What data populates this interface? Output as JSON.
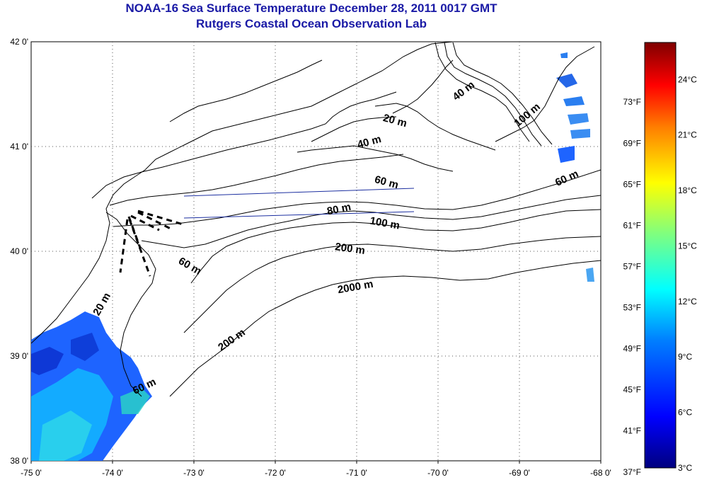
{
  "title": {
    "line1": "NOAA-16 Sea Surface Temperature December 28, 2011 0017 GMT",
    "line2": "Rutgers Coastal Ocean Observation Lab"
  },
  "map": {
    "lon_range": [
      -75,
      -68
    ],
    "lat_range": [
      38,
      42
    ],
    "x_ticks": [
      "-75 0'",
      "-74 0'",
      "-73 0'",
      "-72 0'",
      "-71 0'",
      "-70 0'",
      "-69 0'",
      "-68 0'"
    ],
    "y_ticks": [
      "42 0'",
      "41 0'",
      "40 0'",
      "39 0'",
      "38 0'"
    ],
    "grid": "dotted",
    "contour_labels": [
      "40 m",
      "20 m",
      "40 m",
      "100 m",
      "60 m",
      "60 m",
      "80 m",
      "100 m",
      "200 m",
      "60 m",
      "2000 m",
      "20 m",
      "200 m",
      "60 m"
    ]
  },
  "colorbar": {
    "celsius_labels": [
      "24°C",
      "21°C",
      "18°C",
      "15°C",
      "12°C",
      "9°C",
      "6°C",
      "3°C"
    ],
    "fahrenheit_labels": [
      "73°F",
      "69°F",
      "65°F",
      "61°F",
      "57°F",
      "53°F",
      "49°F",
      "45°F",
      "41°F",
      "37°F"
    ],
    "celsius_range": [
      3,
      26
    ],
    "colors": [
      "#00007f",
      "#0000ff",
      "#007fff",
      "#00ffff",
      "#7fff7f",
      "#ffff00",
      "#ff7f00",
      "#ff0000",
      "#7f0000"
    ]
  }
}
